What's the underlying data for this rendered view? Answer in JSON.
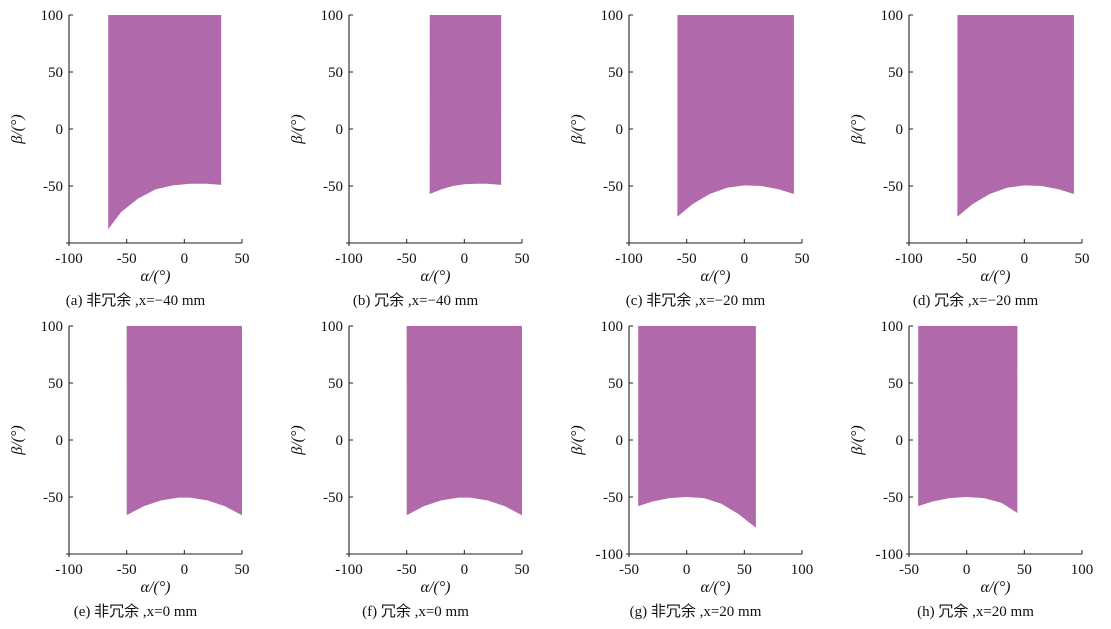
{
  "colors": {
    "region": "#b06aac",
    "axis": "#222222",
    "text": "#111111"
  },
  "chart_data": [
    {
      "type": "area",
      "caption": "(a) 非冗余 ,x=−40 mm",
      "xlabel": "α/(°)",
      "ylabel": "β/(°)",
      "xlim": [
        -100,
        50
      ],
      "ylim": [
        -100,
        100
      ],
      "xticks": [
        -100,
        -50,
        0,
        50
      ],
      "yticks": [
        50,
        0,
        -50,
        100
      ],
      "region": {
        "x_range": [
          -66,
          32
        ],
        "top": 100,
        "bottom": [
          [
            -66,
            -88
          ],
          [
            -55,
            -73
          ],
          [
            -40,
            -61
          ],
          [
            -25,
            -53
          ],
          [
            -10,
            -49.5
          ],
          [
            5,
            -48
          ],
          [
            20,
            -48
          ],
          [
            32,
            -49
          ]
        ]
      }
    },
    {
      "type": "area",
      "caption": "(b) 冗余 ,x=−40 mm",
      "xlabel": "α/(°)",
      "ylabel": "β/(°)",
      "xlim": [
        -100,
        50
      ],
      "ylim": [
        -100,
        100
      ],
      "xticks": [
        -100,
        -50,
        0,
        50
      ],
      "yticks": [
        50,
        0,
        -50,
        100
      ],
      "region": {
        "x_range": [
          -30,
          32
        ],
        "top": 100,
        "bottom": [
          [
            -30,
            -57
          ],
          [
            -20,
            -53
          ],
          [
            -10,
            -50
          ],
          [
            0,
            -48.5
          ],
          [
            10,
            -48
          ],
          [
            20,
            -48
          ],
          [
            32,
            -49
          ]
        ]
      }
    },
    {
      "type": "area",
      "caption": "(c) 非冗余 ,x=−20 mm",
      "xlabel": "α/(°)",
      "ylabel": "β/(°)",
      "xlim": [
        -100,
        50
      ],
      "ylim": [
        -100,
        100
      ],
      "xticks": [
        -100,
        -50,
        0,
        50
      ],
      "yticks": [
        50,
        0,
        -50,
        100
      ],
      "region": {
        "x_range": [
          -58,
          43
        ],
        "top": 100,
        "bottom": [
          [
            -58,
            -77
          ],
          [
            -45,
            -66
          ],
          [
            -30,
            -57
          ],
          [
            -15,
            -51.5
          ],
          [
            0,
            -49.5
          ],
          [
            15,
            -50
          ],
          [
            30,
            -53
          ],
          [
            43,
            -57
          ]
        ]
      }
    },
    {
      "type": "area",
      "caption": "(d) 冗余 ,x=−20 mm",
      "xlabel": "α/(°)",
      "ylabel": "β/(°)",
      "xlim": [
        -100,
        50
      ],
      "ylim": [
        -100,
        100
      ],
      "xticks": [
        -100,
        -50,
        0,
        50
      ],
      "yticks": [
        50,
        0,
        -50,
        100
      ],
      "region": {
        "x_range": [
          -58,
          43
        ],
        "top": 100,
        "bottom": [
          [
            -58,
            -77
          ],
          [
            -45,
            -66
          ],
          [
            -30,
            -57
          ],
          [
            -15,
            -51.5
          ],
          [
            0,
            -49.5
          ],
          [
            15,
            -50
          ],
          [
            30,
            -53
          ],
          [
            43,
            -57
          ]
        ]
      }
    },
    {
      "type": "area",
      "caption": "(e) 非冗余 ,x=0 mm",
      "xlabel": "α/(°)",
      "ylabel": "β/(°)",
      "xlim": [
        -100,
        50
      ],
      "ylim": [
        -100,
        100
      ],
      "xticks": [
        -100,
        -50,
        0,
        50
      ],
      "yticks": [
        50,
        0,
        -50,
        100
      ],
      "region": {
        "x_range": [
          -50,
          50
        ],
        "top": 100,
        "bottom": [
          [
            -50,
            -66
          ],
          [
            -35,
            -58
          ],
          [
            -20,
            -53
          ],
          [
            -5,
            -50.5
          ],
          [
            5,
            -50.5
          ],
          [
            20,
            -53
          ],
          [
            35,
            -58
          ],
          [
            50,
            -66
          ]
        ]
      }
    },
    {
      "type": "area",
      "caption": "(f) 冗余 ,x=0 mm",
      "xlabel": "α/(°)",
      "ylabel": "β/(°)",
      "xlim": [
        -100,
        50
      ],
      "ylim": [
        -100,
        100
      ],
      "xticks": [
        -100,
        -50,
        0,
        50
      ],
      "yticks": [
        50,
        0,
        -50,
        100
      ],
      "region": {
        "x_range": [
          -50,
          50
        ],
        "top": 100,
        "bottom": [
          [
            -50,
            -66
          ],
          [
            -35,
            -58
          ],
          [
            -20,
            -53
          ],
          [
            -5,
            -50.5
          ],
          [
            5,
            -50.5
          ],
          [
            20,
            -53
          ],
          [
            35,
            -58
          ],
          [
            50,
            -66
          ]
        ]
      }
    },
    {
      "type": "area",
      "caption": "(g) 非冗余 ,x=20 mm",
      "xlabel": "α/(°)",
      "ylabel": "β/(°)",
      "xlim": [
        -50,
        100
      ],
      "ylim": [
        -100,
        100
      ],
      "xticks": [
        -50,
        0,
        50,
        100
      ],
      "yticks": [
        50,
        0,
        -50,
        -100,
        100
      ],
      "region": {
        "x_range": [
          -42,
          60
        ],
        "top": 100,
        "bottom": [
          [
            -42,
            -58
          ],
          [
            -30,
            -54
          ],
          [
            -15,
            -51
          ],
          [
            0,
            -50
          ],
          [
            15,
            -51
          ],
          [
            30,
            -56
          ],
          [
            45,
            -65
          ],
          [
            60,
            -77
          ]
        ]
      }
    },
    {
      "type": "area",
      "caption": "(h) 冗余 ,x=20 mm",
      "xlabel": "α/(°)",
      "ylabel": "β/(°)",
      "xlim": [
        -50,
        100
      ],
      "ylim": [
        -100,
        100
      ],
      "xticks": [
        -50,
        0,
        50,
        100
      ],
      "yticks": [
        50,
        0,
        -50,
        -100,
        100
      ],
      "region": {
        "x_range": [
          -42,
          44
        ],
        "top": 100,
        "bottom": [
          [
            -42,
            -58
          ],
          [
            -30,
            -54
          ],
          [
            -15,
            -51
          ],
          [
            0,
            -50
          ],
          [
            15,
            -51
          ],
          [
            30,
            -55
          ],
          [
            44,
            -64
          ]
        ]
      }
    }
  ]
}
